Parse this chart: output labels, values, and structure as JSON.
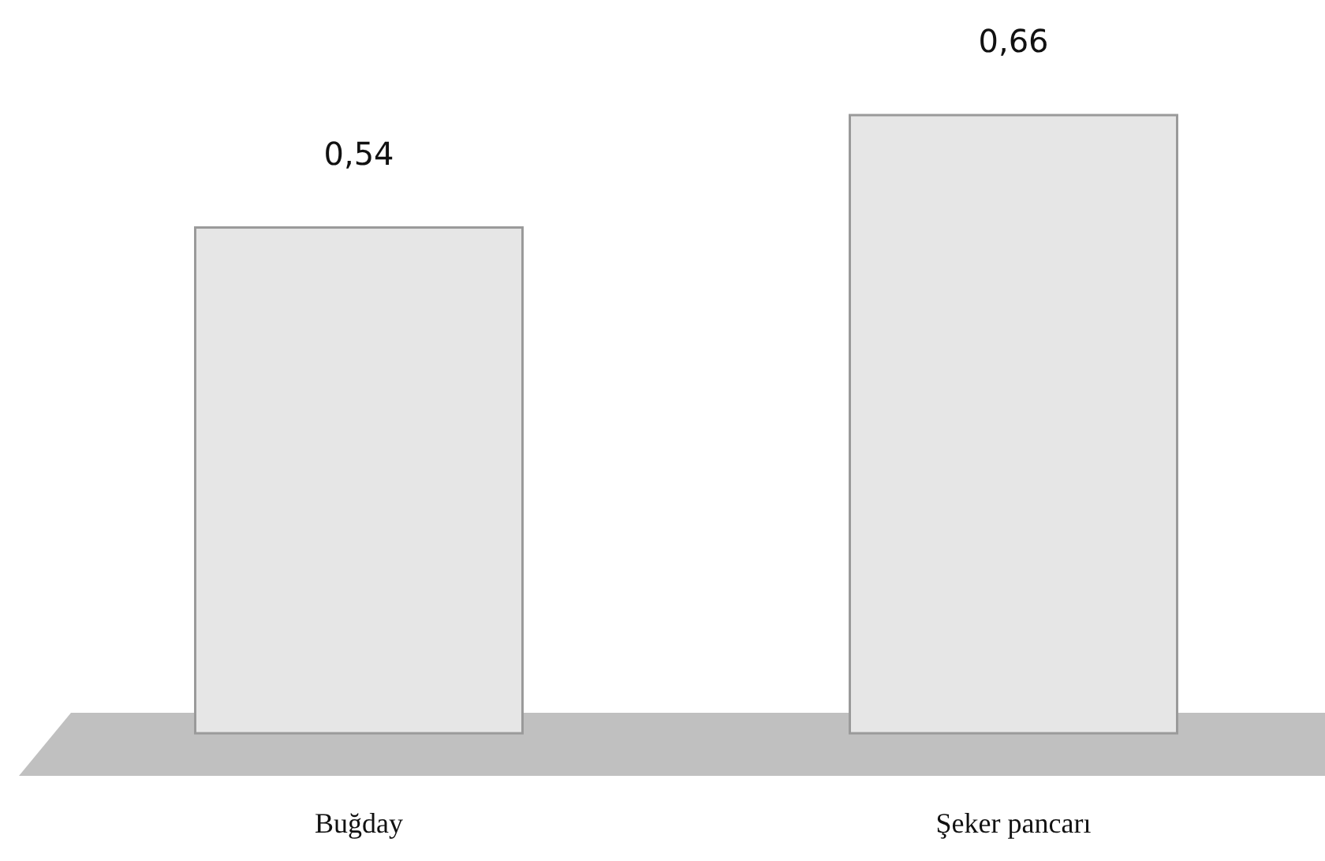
{
  "chart_data": {
    "type": "bar",
    "categories": [
      "Buğday",
      "Şeker pancarı"
    ],
    "values": [
      0.54,
      0.66
    ],
    "value_labels": [
      "0,54",
      "0,66"
    ],
    "color": "#e6e6e6"
  }
}
